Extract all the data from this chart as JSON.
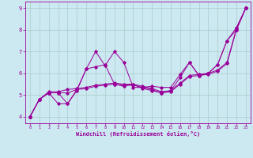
{
  "bg_color": "#cce8f0",
  "grid_color": "#aacccc",
  "line_color": "#990099",
  "xlabel": "Windchill (Refroidissement éolien,°C)",
  "xlim": [
    -0.5,
    23.5
  ],
  "ylim": [
    3.7,
    9.3
  ],
  "yticks": [
    4,
    5,
    6,
    7,
    8,
    9
  ],
  "xticks": [
    0,
    1,
    2,
    3,
    4,
    5,
    6,
    7,
    8,
    9,
    10,
    11,
    12,
    13,
    14,
    15,
    16,
    17,
    18,
    19,
    20,
    21,
    22,
    23
  ],
  "series": [
    {
      "x": [
        0,
        1,
        2,
        3,
        4,
        5,
        6,
        7,
        8,
        9,
        10,
        11,
        12,
        13,
        14,
        15,
        16,
        17,
        18,
        19,
        20,
        21,
        22,
        23
      ],
      "y": [
        4.0,
        4.8,
        5.1,
        4.6,
        4.6,
        5.25,
        6.2,
        7.0,
        6.35,
        7.0,
        6.5,
        5.35,
        5.35,
        5.4,
        5.35,
        5.35,
        5.95,
        6.5,
        5.9,
        6.0,
        6.4,
        7.5,
        8.1,
        9.0
      ]
    },
    {
      "x": [
        0,
        1,
        2,
        3,
        4,
        5,
        6,
        7,
        8,
        9,
        10,
        11,
        12,
        13,
        14,
        15,
        16,
        17,
        18,
        19,
        20,
        21,
        22,
        23
      ],
      "y": [
        4.0,
        4.8,
        5.15,
        5.15,
        5.25,
        5.3,
        5.35,
        5.45,
        5.5,
        5.55,
        5.5,
        5.5,
        5.4,
        5.3,
        5.15,
        5.2,
        5.55,
        5.9,
        5.95,
        6.0,
        6.15,
        6.5,
        8.05,
        9.0
      ]
    },
    {
      "x": [
        0,
        1,
        2,
        3,
        4,
        5,
        6,
        7,
        8,
        9,
        10,
        11,
        12,
        13,
        14,
        15,
        16,
        17,
        18,
        19,
        20,
        21,
        22,
        23
      ],
      "y": [
        4.0,
        4.8,
        5.1,
        5.1,
        5.1,
        5.25,
        5.3,
        5.4,
        5.45,
        5.5,
        5.45,
        5.45,
        5.35,
        5.25,
        5.1,
        5.15,
        5.5,
        5.85,
        5.9,
        5.95,
        6.1,
        6.45,
        8.0,
        9.0
      ]
    },
    {
      "x": [
        0,
        1,
        2,
        3,
        4,
        5,
        6,
        7,
        8,
        9,
        10,
        11,
        12,
        13,
        14,
        15,
        16,
        17,
        18,
        19,
        20,
        21,
        22,
        23
      ],
      "y": [
        4.0,
        4.8,
        5.1,
        5.1,
        4.6,
        5.2,
        6.2,
        6.3,
        6.4,
        5.5,
        5.4,
        5.5,
        5.3,
        5.2,
        5.1,
        5.2,
        5.8,
        6.5,
        5.9,
        6.0,
        6.4,
        7.5,
        8.0,
        9.0
      ]
    }
  ]
}
